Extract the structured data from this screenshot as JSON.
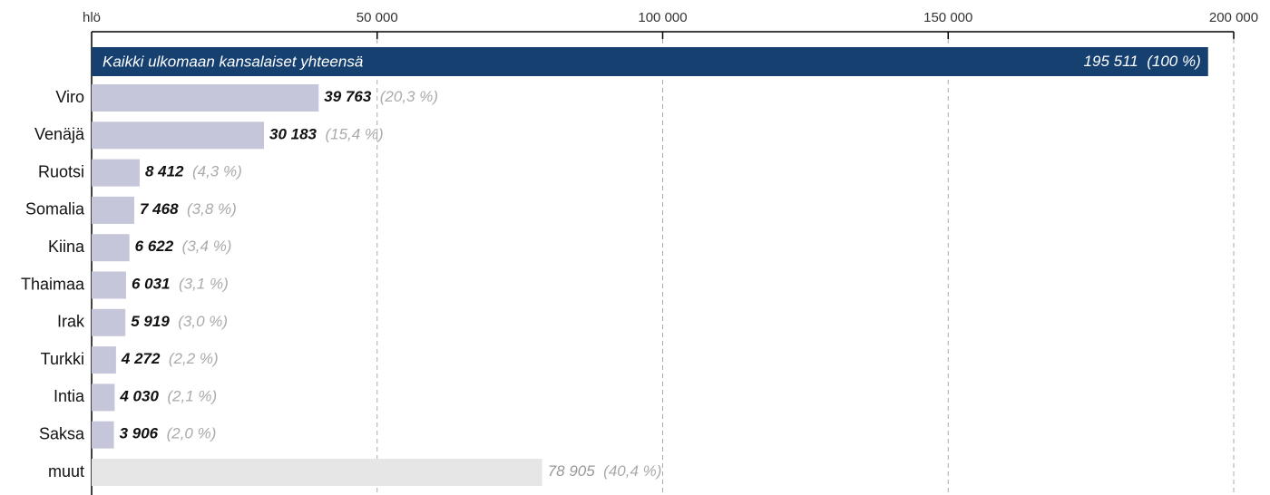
{
  "chart_data": {
    "type": "barh",
    "xlabel": "hlö",
    "xlim": [
      0,
      200000
    ],
    "xticks": [
      {
        "value": 50000,
        "label": "50 000"
      },
      {
        "value": 100000,
        "label": "100 000"
      },
      {
        "value": 150000,
        "label": "150 000"
      },
      {
        "value": 200000,
        "label": "200 000"
      }
    ],
    "grid": true,
    "total": {
      "label": "Kaikki ulkomaan kansalaiset yhteensä",
      "value": 195511,
      "value_label": "195 511",
      "share_label": "(100 %)",
      "color": "#15406f"
    },
    "categories": [
      "Viro",
      "Venäjä",
      "Ruotsi",
      "Somalia",
      "Kiina",
      "Thaimaa",
      "Irak",
      "Turkki",
      "Intia",
      "Saksa",
      "muut"
    ],
    "values": [
      39763,
      30183,
      8412,
      7468,
      6622,
      6031,
      5919,
      4272,
      4030,
      3906,
      78905
    ],
    "value_labels": [
      "39 763",
      "30 183",
      "8 412",
      "7 468",
      "6 622",
      "6 031",
      "5 919",
      "4 272",
      "4 030",
      "3 906",
      "78 905"
    ],
    "share_labels": [
      "(20,3 %)",
      "(15,4 %)",
      "(4,3 %)",
      "(3,8 %)",
      "(3,4 %)",
      "(3,1 %)",
      "(3,0 %)",
      "(2,2 %)",
      "(2,1 %)",
      "(2,0 %)",
      "(40,4 %)"
    ],
    "colors": [
      "#c5c6da",
      "#c5c6da",
      "#c5c6da",
      "#c5c6da",
      "#c5c6da",
      "#c5c6da",
      "#c5c6da",
      "#c5c6da",
      "#c5c6da",
      "#c5c6da",
      "#e6e6e6"
    ]
  }
}
